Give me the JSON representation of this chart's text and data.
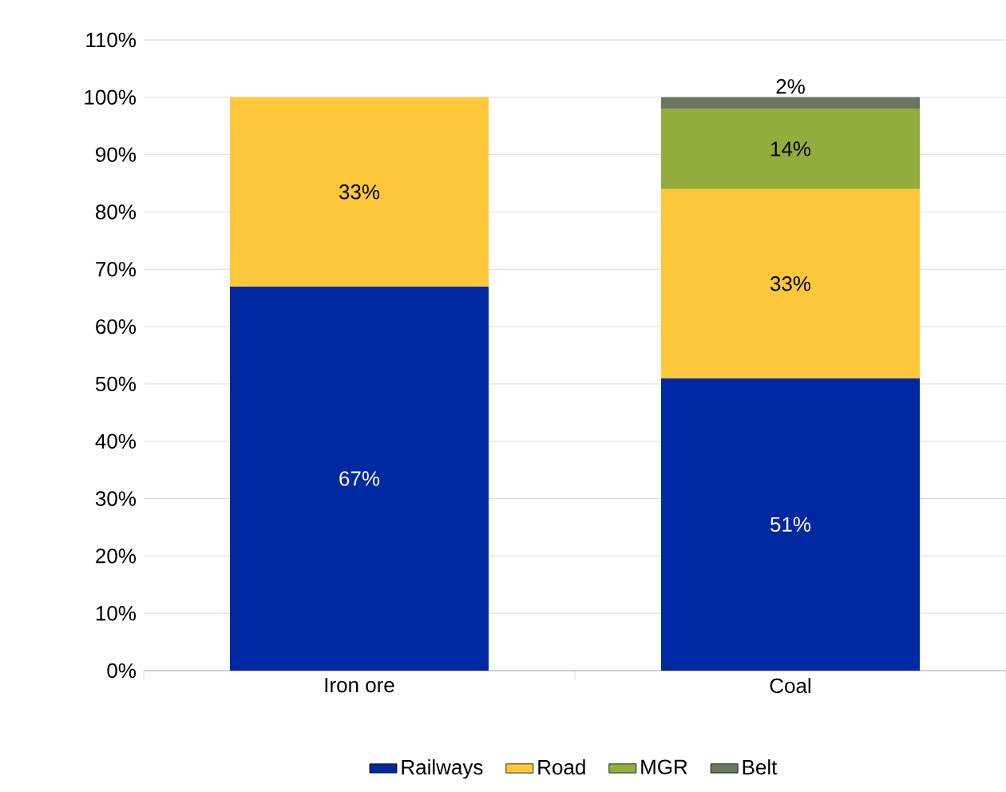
{
  "chart_data": {
    "type": "bar",
    "stacked": true,
    "categories": [
      "Iron ore",
      "Coal"
    ],
    "series": [
      {
        "name": "Railways",
        "color": "#0028a0",
        "values": [
          67,
          51
        ],
        "value_labels": [
          "67%",
          "51%"
        ]
      },
      {
        "name": "Road",
        "color": "#ffc83a",
        "values": [
          33,
          33
        ],
        "value_labels": [
          "33%",
          "33%"
        ]
      },
      {
        "name": "MGR",
        "color": "#92ad3b",
        "values": [
          null,
          14
        ],
        "value_labels": [
          null,
          "14%"
        ]
      },
      {
        "name": "Belt",
        "color": "#6b7560",
        "values": [
          null,
          2
        ],
        "value_labels": [
          null,
          "2%"
        ]
      }
    ],
    "ylim": [
      0,
      110
    ],
    "yticks": [
      {
        "value": 0,
        "label": "0%"
      },
      {
        "value": 10,
        "label": "10%"
      },
      {
        "value": 20,
        "label": "20%"
      },
      {
        "value": 30,
        "label": "30%"
      },
      {
        "value": 40,
        "label": "40%"
      },
      {
        "value": 50,
        "label": "50%"
      },
      {
        "value": 60,
        "label": "60%"
      },
      {
        "value": 70,
        "label": "70%"
      },
      {
        "value": 80,
        "label": "80%"
      },
      {
        "value": 90,
        "label": "90%"
      },
      {
        "value": 100,
        "label": "100%"
      },
      {
        "value": 110,
        "label": "110%"
      }
    ],
    "grid": "y",
    "legend": "bottom"
  }
}
